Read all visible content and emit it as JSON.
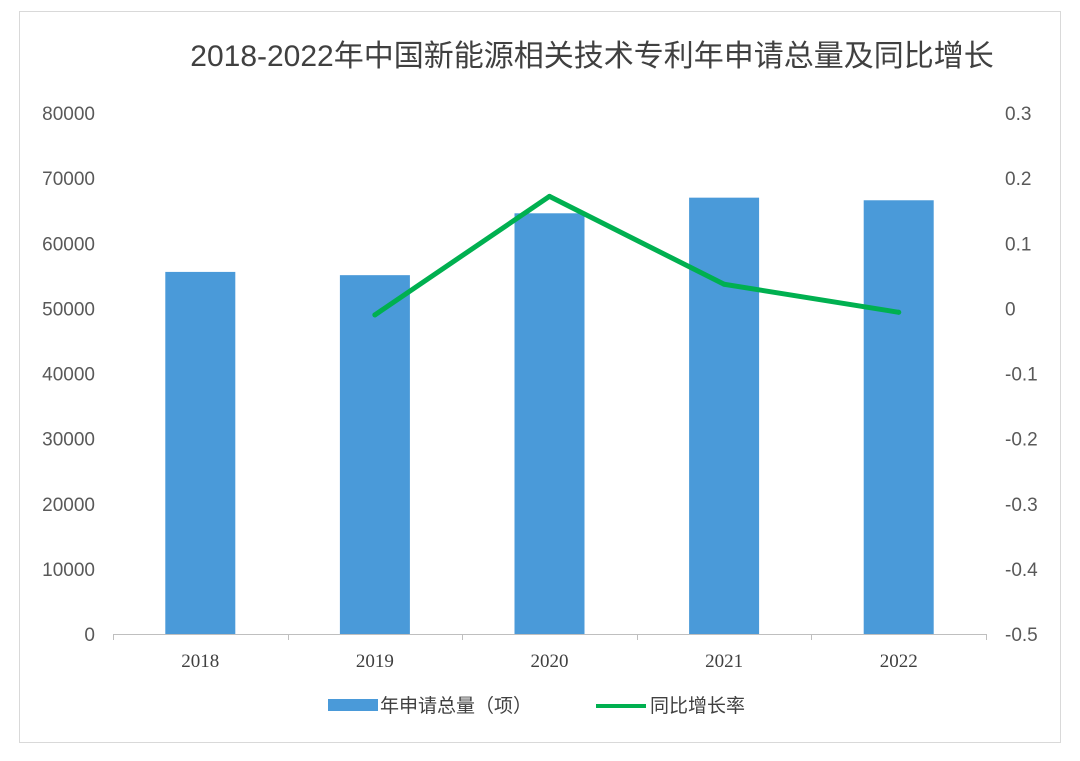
{
  "chart_data": {
    "type": "bar",
    "title": "2018-2022年中国新能源相关技术专利年申请总量及同比增长",
    "categories": [
      "2018",
      "2019",
      "2020",
      "2021",
      "2022"
    ],
    "series": [
      {
        "name": "年申请总量（项）",
        "kind": "bar",
        "axis": "left",
        "color": "#4a9ad9",
        "values": [
          55600,
          55100,
          64600,
          67000,
          66600
        ]
      },
      {
        "name": "同比增长率",
        "kind": "line",
        "axis": "right",
        "color": "#00b050",
        "values": [
          null,
          -0.01,
          0.172,
          0.037,
          -0.006
        ]
      }
    ],
    "y_left": {
      "range": [
        0,
        80000
      ],
      "ticks": [
        "0",
        "10000",
        "20000",
        "30000",
        "40000",
        "50000",
        "60000",
        "70000",
        "80000"
      ]
    },
    "y_right": {
      "range": [
        -0.5,
        0.3
      ],
      "ticks": [
        "-0.5",
        "-0.4",
        "-0.3",
        "-0.2",
        "-0.1",
        "0",
        "0.1",
        "0.2",
        "0.3"
      ]
    },
    "grid": false,
    "legend_position": "bottom"
  }
}
